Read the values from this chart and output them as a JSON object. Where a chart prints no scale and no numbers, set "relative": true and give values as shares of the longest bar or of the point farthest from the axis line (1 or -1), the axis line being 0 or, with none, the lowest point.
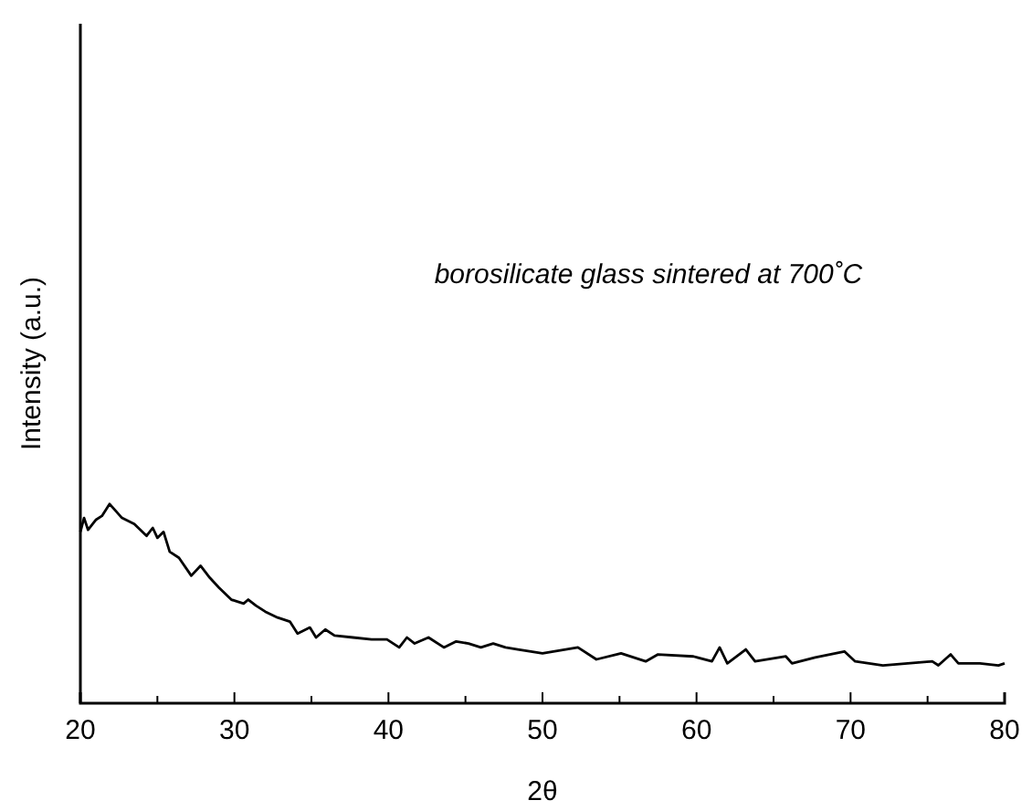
{
  "chart_data": {
    "type": "line",
    "xlabel": "2θ",
    "ylabel": "Intensity (a.u.)",
    "relative": true,
    "annotations": [
      "borosilicate glass sintered at 700˚C"
    ],
    "xlim": [
      20,
      80
    ],
    "xticks": [
      20,
      {
        "value": 25,
        "label": null
      },
      30,
      {
        "value": 35,
        "label": null
      },
      40,
      {
        "value": 45,
        "label": null
      },
      50,
      {
        "value": 55,
        "label": null
      },
      60,
      {
        "value": 65,
        "label": null
      },
      70,
      {
        "value": 75,
        "label": null
      },
      80
    ],
    "marker": "none",
    "line_style": "solid",
    "series": [
      {
        "color": "#000000",
        "x": [
          20.0,
          20.24,
          20.5,
          20.8,
          21.0,
          21.4,
          21.9,
          22.7,
          23.5,
          24.3,
          24.7,
          25.0,
          25.4,
          25.8,
          26.4,
          27.2,
          27.8,
          28.4,
          29.0,
          29.8,
          30.6,
          30.9,
          31.4,
          32.0,
          32.8,
          33.6,
          34.1,
          34.9,
          35.3,
          35.9,
          36.5,
          37.7,
          38.9,
          39.9,
          40.7,
          41.2,
          41.7,
          42.6,
          43.6,
          44.4,
          45.2,
          46.0,
          46.8,
          47.6,
          48.4,
          50.0,
          52.3,
          53.5,
          55.1,
          56.7,
          57.5,
          59.8,
          61.0,
          61.5,
          62.0,
          63.2,
          63.8,
          65.8,
          66.2,
          67.7,
          69.6,
          70.3,
          72.1,
          73.7,
          75.3,
          75.7,
          76.5,
          77.0,
          78.4,
          79.6,
          80.0
        ],
        "values": [
          0.86,
          0.93,
          0.87,
          0.9,
          0.92,
          0.94,
          1.0,
          0.93,
          0.9,
          0.84,
          0.88,
          0.83,
          0.86,
          0.76,
          0.73,
          0.64,
          0.69,
          0.63,
          0.58,
          0.52,
          0.5,
          0.52,
          0.49,
          0.46,
          0.43,
          0.41,
          0.35,
          0.38,
          0.33,
          0.37,
          0.34,
          0.33,
          0.32,
          0.32,
          0.28,
          0.33,
          0.3,
          0.33,
          0.28,
          0.31,
          0.3,
          0.28,
          0.3,
          0.28,
          0.27,
          0.25,
          0.28,
          0.22,
          0.25,
          0.21,
          0.245,
          0.235,
          0.21,
          0.28,
          0.2,
          0.27,
          0.21,
          0.235,
          0.2,
          0.23,
          0.26,
          0.21,
          0.19,
          0.2,
          0.21,
          0.19,
          0.245,
          0.2,
          0.2,
          0.19,
          0.2
        ]
      }
    ]
  }
}
